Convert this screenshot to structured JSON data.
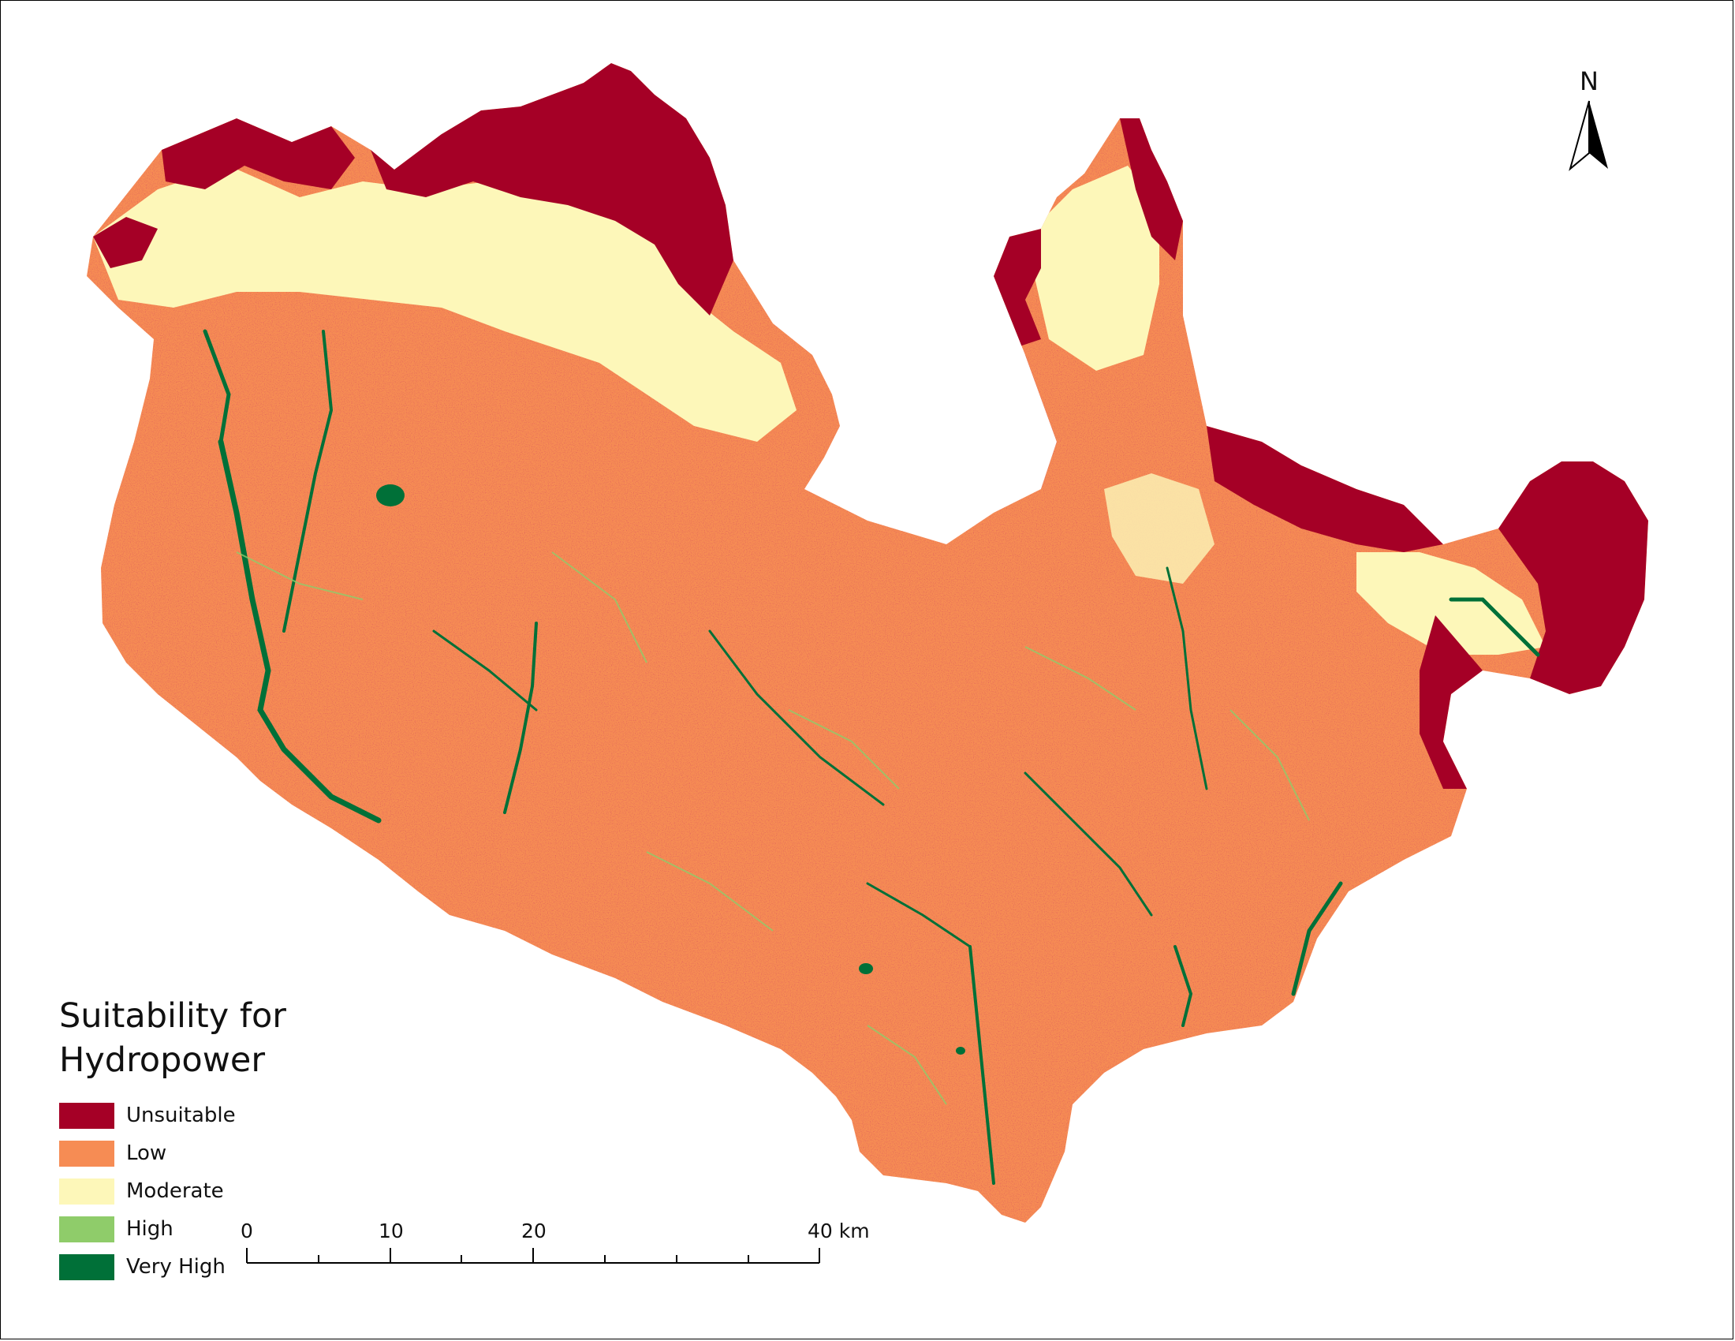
{
  "legend": {
    "title_line1": "Suitability for",
    "title_line2": "Hydropower",
    "items": [
      {
        "label": "Unsuitable",
        "color": "#a50026"
      },
      {
        "label": "Low",
        "color": "#f68c54"
      },
      {
        "label": "Moderate",
        "color": "#fdf7b9"
      },
      {
        "label": "High",
        "color": "#8fcc6a"
      },
      {
        "label": "Very High",
        "color": "#007038"
      }
    ]
  },
  "north_arrow": {
    "letter": "N",
    "icon": "north-arrow-icon"
  },
  "scale_bar": {
    "labels": [
      "0",
      "10",
      "20",
      "40 km"
    ]
  }
}
